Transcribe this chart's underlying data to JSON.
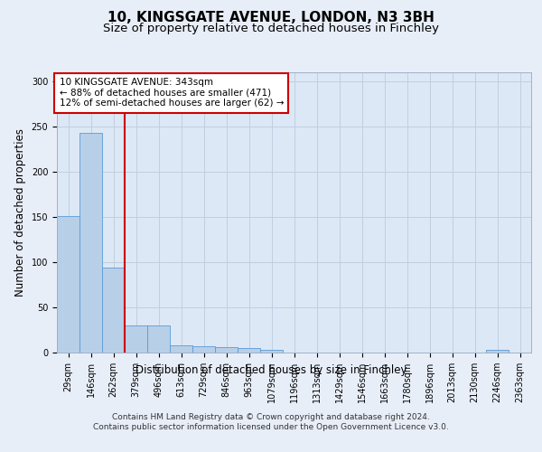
{
  "title": "10, KINGSGATE AVENUE, LONDON, N3 3BH",
  "subtitle": "Size of property relative to detached houses in Finchley",
  "xlabel": "Distribution of detached houses by size in Finchley",
  "ylabel": "Number of detached properties",
  "categories": [
    "29sqm",
    "146sqm",
    "262sqm",
    "379sqm",
    "496sqm",
    "613sqm",
    "729sqm",
    "846sqm",
    "963sqm",
    "1079sqm",
    "1196sqm",
    "1313sqm",
    "1429sqm",
    "1546sqm",
    "1663sqm",
    "1780sqm",
    "1896sqm",
    "2013sqm",
    "2130sqm",
    "2246sqm",
    "2363sqm"
  ],
  "values": [
    151,
    243,
    94,
    30,
    30,
    8,
    7,
    6,
    5,
    3,
    0,
    0,
    0,
    0,
    0,
    0,
    0,
    0,
    0,
    3,
    0
  ],
  "bar_color": "#b8cfe8",
  "bar_edge_color": "#5b9bd5",
  "vline_x_index": 2,
  "vline_color": "#cc0000",
  "annotation_text": "10 KINGSGATE AVENUE: 343sqm\n← 88% of detached houses are smaller (471)\n12% of semi-detached houses are larger (62) →",
  "annotation_box_facecolor": "#ffffff",
  "annotation_box_edgecolor": "#cc0000",
  "grid_color": "#c0cfe0",
  "plot_bg_color": "#dce8f5",
  "fig_bg_color": "#e8eef8",
  "footer": "Contains HM Land Registry data © Crown copyright and database right 2024.\nContains public sector information licensed under the Open Government Licence v3.0.",
  "ylim": [
    0,
    310
  ],
  "yticks": [
    0,
    50,
    100,
    150,
    200,
    250,
    300
  ],
  "title_fontsize": 11,
  "subtitle_fontsize": 9.5,
  "ylabel_fontsize": 8.5,
  "xlabel_fontsize": 8.5,
  "tick_fontsize": 7,
  "annotation_fontsize": 7.5,
  "footer_fontsize": 6.5
}
